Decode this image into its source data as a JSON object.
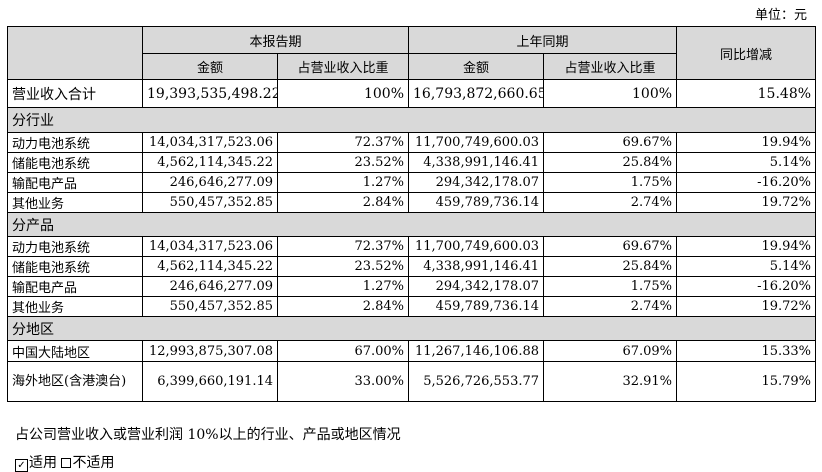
{
  "unit": "单位：元",
  "headers": {
    "current_period": "本报告期",
    "prior_period": "上年同期",
    "yoy": "同比增减",
    "amount": "金额",
    "share": "占营业收入比重"
  },
  "total": {
    "label": "营业收入合计",
    "cur_amt": "19,393,535,498.22",
    "cur_pct": "100%",
    "prev_amt": "16,793,872,660.65",
    "prev_pct": "100%",
    "yoy": "15.48%"
  },
  "sections": [
    {
      "title": "分行业",
      "rows": [
        {
          "label": "动力电池系统",
          "cur_amt": "14,034,317,523.06",
          "cur_pct": "72.37%",
          "prev_amt": "11,700,749,600.03",
          "prev_pct": "69.67%",
          "yoy": "19.94%"
        },
        {
          "label": "储能电池系统",
          "cur_amt": "4,562,114,345.22",
          "cur_pct": "23.52%",
          "prev_amt": "4,338,991,146.41",
          "prev_pct": "25.84%",
          "yoy": "5.14%"
        },
        {
          "label": "输配电产品",
          "cur_amt": "246,646,277.09",
          "cur_pct": "1.27%",
          "prev_amt": "294,342,178.07",
          "prev_pct": "1.75%",
          "yoy": "-16.20%"
        },
        {
          "label": "其他业务",
          "cur_amt": "550,457,352.85",
          "cur_pct": "2.84%",
          "prev_amt": "459,789,736.14",
          "prev_pct": "2.74%",
          "yoy": "19.72%"
        }
      ]
    },
    {
      "title": "分产品",
      "rows": [
        {
          "label": "动力电池系统",
          "cur_amt": "14,034,317,523.06",
          "cur_pct": "72.37%",
          "prev_amt": "11,700,749,600.03",
          "prev_pct": "69.67%",
          "yoy": "19.94%"
        },
        {
          "label": "储能电池系统",
          "cur_amt": "4,562,114,345.22",
          "cur_pct": "23.52%",
          "prev_amt": "4,338,991,146.41",
          "prev_pct": "25.84%",
          "yoy": "5.14%"
        },
        {
          "label": "输配电产品",
          "cur_amt": "246,646,277.09",
          "cur_pct": "1.27%",
          "prev_amt": "294,342,178.07",
          "prev_pct": "1.75%",
          "yoy": "-16.20%"
        },
        {
          "label": "其他业务",
          "cur_amt": "550,457,352.85",
          "cur_pct": "2.84%",
          "prev_amt": "459,789,736.14",
          "prev_pct": "2.74%",
          "yoy": "19.72%"
        }
      ]
    },
    {
      "title": "分地区",
      "rows": [
        {
          "label": "中国大陆地区",
          "cur_amt": "12,993,875,307.08",
          "cur_pct": "67.00%",
          "prev_amt": "11,267,146,106.88",
          "prev_pct": "67.09%",
          "yoy": "15.33%"
        },
        {
          "label": "海外地区(含港澳台)",
          "cur_amt": "6,399,660,191.14",
          "cur_pct": "33.00%",
          "prev_amt": "5,526,726,553.77",
          "prev_pct": "32.91%",
          "yoy": "15.79%"
        }
      ]
    }
  ],
  "note": "占公司营业收入或营业利润 10%以上的行业、产品或地区情况",
  "applicability": {
    "applicable": "适用",
    "not_applicable": "不适用"
  }
}
